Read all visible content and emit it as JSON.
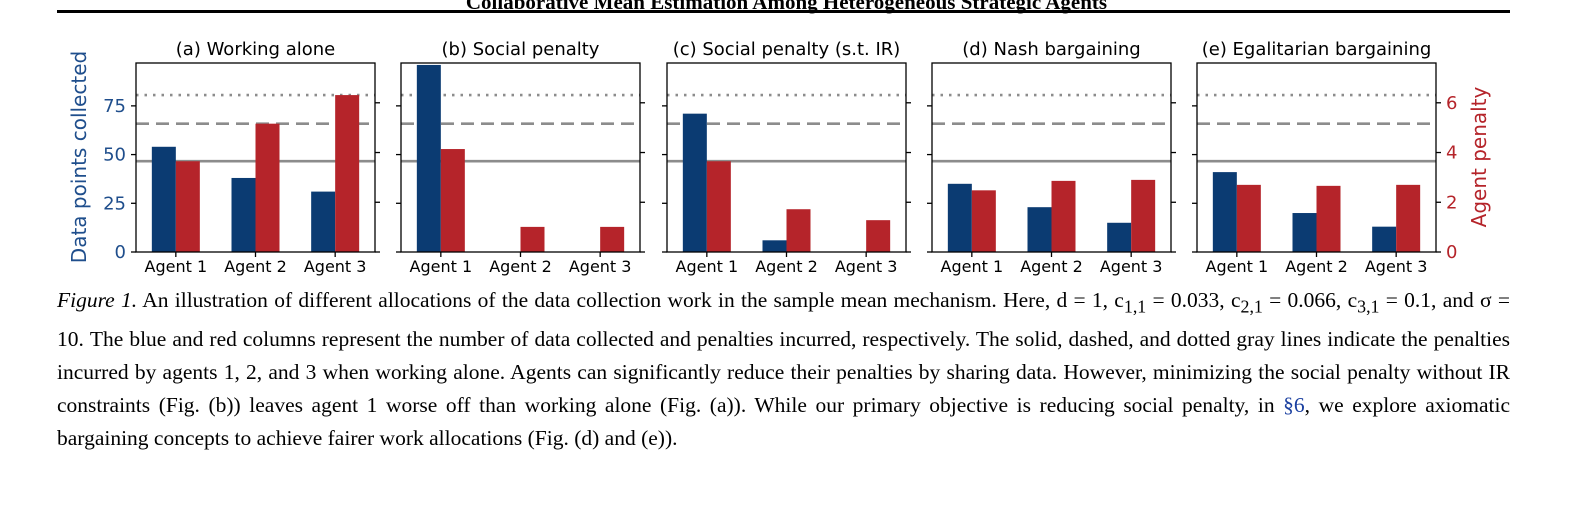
{
  "header": {
    "title": "Collaborative Mean Estimation Among Heterogeneous Strategic Agents"
  },
  "colors": {
    "data_bar": "#0b3b72",
    "penalty_bar": "#b5242a",
    "ref_line": "#8c8c8c",
    "left_axis": "#1f4e8c",
    "right_axis": "#b5242a",
    "link": "#1a3fa0"
  },
  "chart_data": {
    "type": "bar",
    "categories": [
      "Agent 1",
      "Agent 2",
      "Agent 3"
    ],
    "left_axis": {
      "label": "Data points collected",
      "ticks": [
        0,
        25,
        50,
        75
      ],
      "ylim": [
        0,
        97
      ]
    },
    "right_axis": {
      "label": "Agent penalty",
      "ticks": [
        0,
        2,
        4,
        6
      ],
      "ylim": [
        0,
        7.6
      ]
    },
    "reference_lines": [
      {
        "style": "solid",
        "penalty": 3.65
      },
      {
        "style": "dashed",
        "penalty": 5.16
      },
      {
        "style": "dotted",
        "penalty": 6.31
      }
    ],
    "grid": false,
    "panels": [
      {
        "title": "(a) Working alone",
        "data": [
          54,
          38,
          31
        ],
        "penalty": [
          3.65,
          5.16,
          6.31
        ]
      },
      {
        "title": "(b) Social penalty",
        "data": [
          96,
          0,
          0
        ],
        "penalty": [
          4.14,
          1.01,
          1.01
        ]
      },
      {
        "title": "(c) Social penalty (s.t. IR)",
        "data": [
          71,
          6,
          0
        ],
        "penalty": [
          3.65,
          1.72,
          1.28
        ]
      },
      {
        "title": "(d) Nash bargaining",
        "data": [
          35,
          23,
          15
        ],
        "penalty": [
          2.48,
          2.86,
          2.9
        ]
      },
      {
        "title": "(e) Egalitarian bargaining",
        "data": [
          41,
          20,
          13
        ],
        "penalty": [
          2.7,
          2.66,
          2.7
        ]
      }
    ]
  },
  "caption": {
    "label": "Figure 1.",
    "part1": "An illustration of different allocations of the data collection work in the sample mean mechanism. Here, d = 1, c",
    "c11_sub": "1,1",
    "part2": " = 0.033, c",
    "c21_sub": "2,1",
    "part3": " = 0.066, c",
    "c31_sub": "3,1",
    "part4": " = 0.1, and σ = 10. The blue and red columns represent the number of data collected and penalties incurred, respectively. The solid, dashed, and dotted gray lines indicate the penalties incurred by agents 1, 2, and 3 when working alone. Agents can significantly reduce their penalties by sharing data. However, minimizing the social penalty without IR constraints (Fig. (b)) leaves agent 1 worse off than working alone (Fig. (a)). While our primary objective is reducing social penalty, in ",
    "section_ref": "§6",
    "part5": ", we explore axiomatic bargaining concepts to achieve fairer work allocations (Fig. (d) and (e))."
  }
}
